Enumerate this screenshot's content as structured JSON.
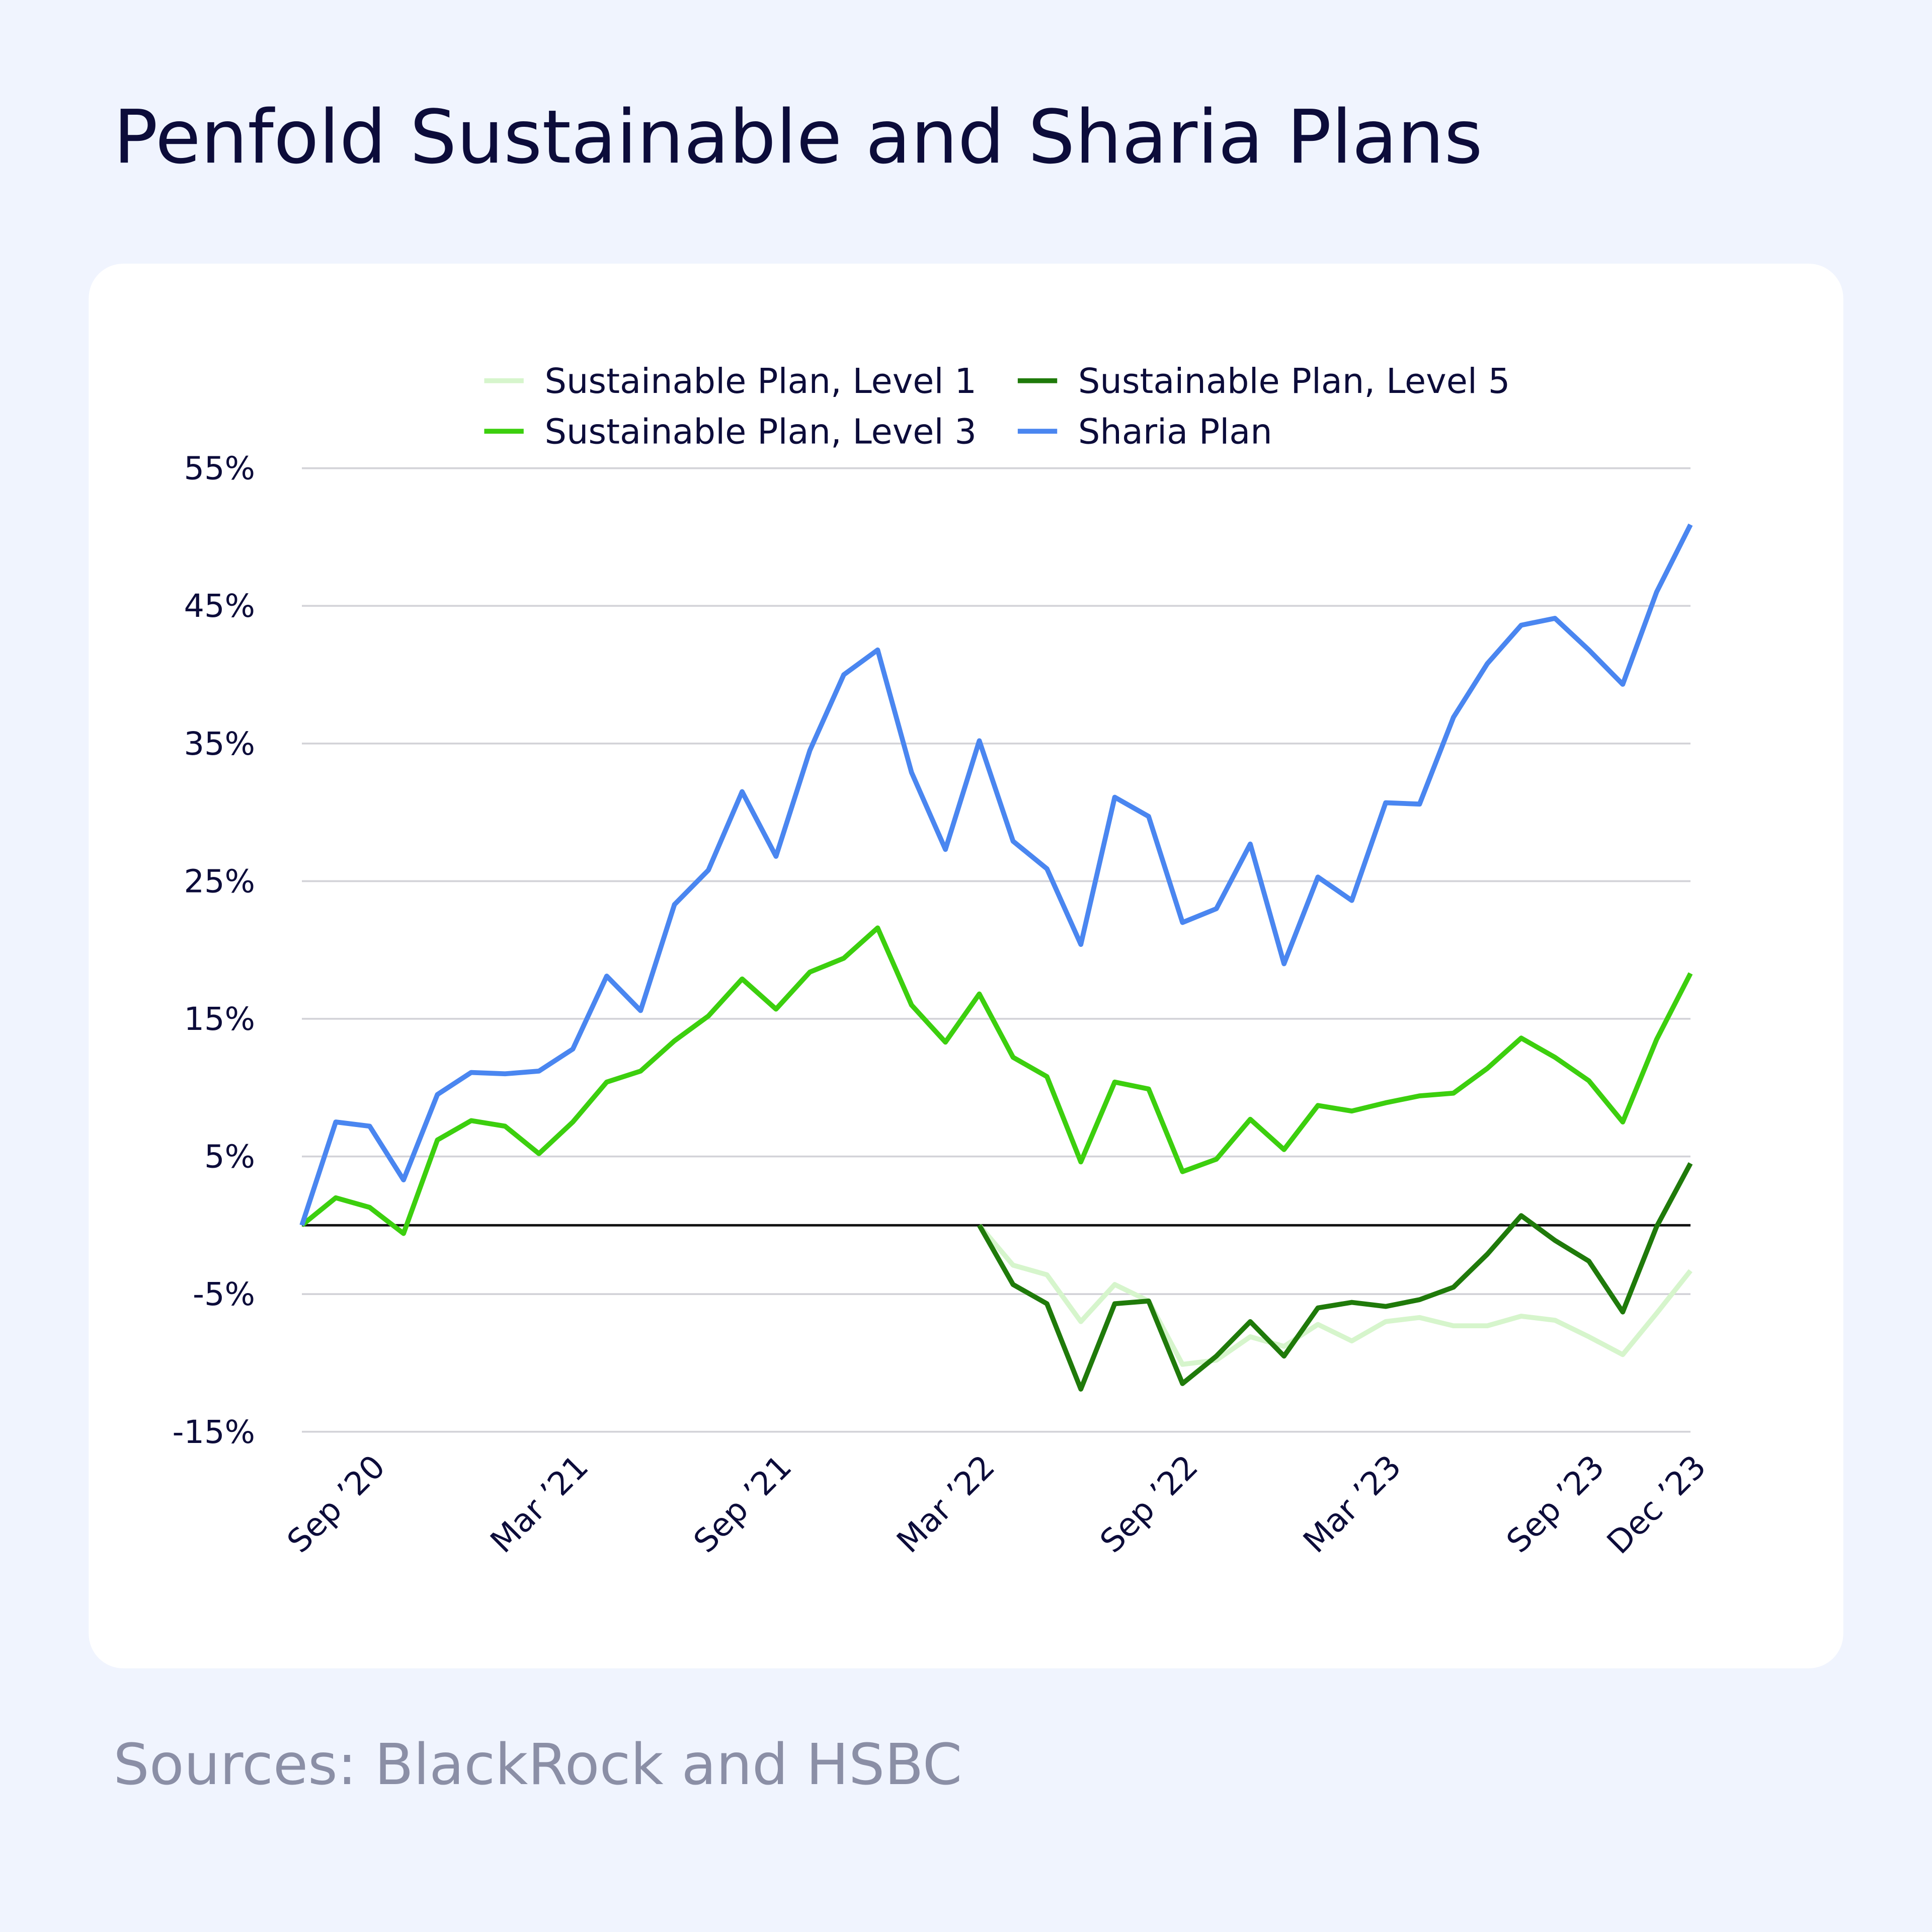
{
  "chart_data": {
    "type": "line",
    "title": "Penfold Sustainable and Sharia Plans",
    "source": "Sources: BlackRock and HSBC",
    "categories": [
      null,
      null,
      "Sep ’20",
      null,
      null,
      null,
      null,
      null,
      "Mar ’21",
      null,
      null,
      null,
      null,
      null,
      "Sep ’21",
      null,
      null,
      null,
      null,
      null,
      "Mar ’22",
      null,
      null,
      null,
      null,
      null,
      "Sep ’22",
      null,
      null,
      null,
      null,
      null,
      "Mar ’23",
      null,
      null,
      null,
      null,
      null,
      "Sep ’23",
      null,
      null,
      "Dec ’23"
    ],
    "ylim": [
      -15,
      55
    ],
    "yticks": [
      {
        "value": -15,
        "label": "-15%"
      },
      {
        "value": -5,
        "label": "-5%"
      },
      {
        "value": 5,
        "label": "5%"
      },
      {
        "value": 15,
        "label": "15%"
      },
      {
        "value": 25,
        "label": "25%"
      },
      {
        "value": 35,
        "label": "35%"
      },
      {
        "value": 45,
        "label": "45%"
      },
      {
        "value": 55,
        "label": "55%"
      }
    ],
    "grid": true,
    "legend": "top",
    "series": [
      {
        "name": "Sustainable Plan, Level 1",
        "color": "#d6f5cc",
        "values": [
          null,
          null,
          null,
          null,
          null,
          null,
          null,
          null,
          null,
          null,
          null,
          null,
          null,
          null,
          null,
          null,
          null,
          null,
          null,
          null,
          0,
          -2.9,
          -3.6,
          -7.0,
          -4.3,
          -5.5,
          -10.1,
          -9.8,
          -8.1,
          -8.8,
          -7.2,
          -8.4,
          -7.0,
          -6.7,
          -7.3,
          -7.3,
          -6.6,
          -6.9,
          -8.1,
          -9.4,
          -6.4,
          -3.3
        ]
      },
      {
        "name": "Sustainable Plan, Level 3",
        "color": "#3ccf0e",
        "values": [
          0,
          2.0,
          1.3,
          -0.6,
          6.2,
          7.6,
          7.2,
          5.2,
          7.5,
          10.4,
          11.2,
          13.4,
          15.2,
          17.9,
          15.7,
          18.4,
          19.4,
          21.6,
          16.0,
          13.3,
          16.8,
          12.2,
          10.8,
          4.6,
          10.4,
          9.9,
          3.9,
          4.8,
          7.7,
          5.5,
          8.7,
          8.3,
          8.9,
          9.4,
          9.6,
          11.4,
          13.6,
          12.2,
          10.5,
          7.5,
          13.5,
          18.3
        ]
      },
      {
        "name": "Sustainable Plan, Level 5",
        "color": "#1f7a0a",
        "values": [
          null,
          null,
          null,
          null,
          null,
          null,
          null,
          null,
          null,
          null,
          null,
          null,
          null,
          null,
          null,
          null,
          null,
          null,
          null,
          null,
          0,
          -4.3,
          -5.7,
          -11.9,
          -5.7,
          -5.5,
          -11.5,
          -9.5,
          -7.0,
          -9.5,
          -6.0,
          -5.6,
          -5.9,
          -5.4,
          -4.5,
          -2.1,
          0.7,
          -1.1,
          -2.6,
          -6.3,
          -0.1,
          4.5
        ]
      },
      {
        "name": "Sharia Plan",
        "color": "#4a86f0",
        "values": [
          0,
          7.5,
          7.2,
          3.3,
          9.5,
          11.1,
          11.0,
          11.2,
          12.8,
          18.1,
          15.6,
          23.3,
          25.8,
          31.5,
          26.8,
          34.5,
          40.0,
          41.8,
          32.9,
          27.3,
          35.2,
          27.9,
          25.9,
          20.4,
          31.1,
          29.7,
          22.0,
          23.0,
          27.7,
          19.0,
          25.3,
          23.6,
          30.7,
          30.6,
          36.9,
          40.8,
          43.6,
          44.1,
          41.8,
          39.3,
          46.0,
          50.9
        ]
      }
    ]
  }
}
